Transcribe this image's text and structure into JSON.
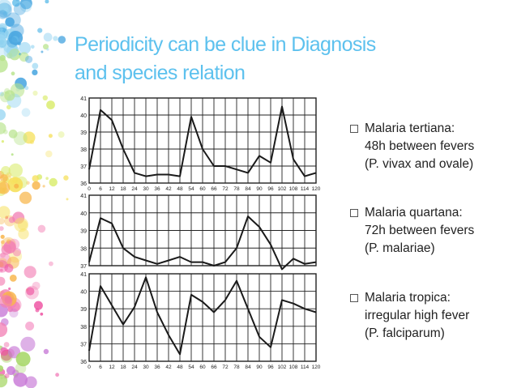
{
  "title": {
    "line1": "Periodicity can be clue in Diagnosis",
    "line2": "and species relation"
  },
  "legend": [
    {
      "line1": "Malaria tertiana:",
      "line2": "48h between fevers",
      "line3": "(P. vivax and ovale)"
    },
    {
      "line1": "Malaria quartana:",
      "line2": "72h between fevers",
      "line3": "(P. malariae)"
    },
    {
      "line1": "Malaria tropica:",
      "line2": "irregular high fever",
      "line3": "(P. falciparum)"
    }
  ],
  "colors": {
    "title": "#5dc1ee",
    "line": "#1a1a1a",
    "grid": "#222222"
  },
  "chart_data": [
    {
      "type": "line",
      "xlabel": "",
      "ylabel": "",
      "x_ticks": [
        "0",
        "6",
        "12",
        "18",
        "24",
        "30",
        "36",
        "42",
        "48",
        "54",
        "60",
        "66",
        "72",
        "78",
        "84",
        "90",
        "96",
        "102",
        "108",
        "114",
        "120"
      ],
      "y_ticks": [
        "41",
        "40",
        "39",
        "38",
        "37",
        "36"
      ],
      "ylim": [
        36,
        41
      ],
      "xlim": [
        0,
        120
      ],
      "grid": true,
      "x": [
        0,
        6,
        12,
        18,
        24,
        30,
        36,
        42,
        48,
        54,
        60,
        66,
        72,
        78,
        84,
        90,
        96,
        102,
        108,
        114,
        120
      ],
      "values": [
        36.8,
        40.3,
        39.7,
        38.0,
        36.6,
        36.4,
        36.5,
        36.5,
        36.4,
        39.9,
        38.0,
        37.0,
        37.0,
        36.8,
        36.6,
        37.6,
        37.2,
        40.5,
        37.4,
        36.4,
        36.6
      ]
    },
    {
      "type": "line",
      "xlabel": "",
      "ylabel": "",
      "x_ticks": [
        "0",
        "6",
        "12",
        "18",
        "24",
        "30",
        "36",
        "42",
        "48",
        "54",
        "60",
        "66",
        "72",
        "78",
        "84",
        "90",
        "96",
        "102",
        "108",
        "114",
        "120"
      ],
      "y_ticks": [
        "41",
        "40",
        "39",
        "38",
        "37"
      ],
      "ylim": [
        37,
        41
      ],
      "xlim": [
        0,
        120
      ],
      "grid": true,
      "x": [
        0,
        6,
        12,
        18,
        24,
        30,
        36,
        42,
        48,
        54,
        60,
        66,
        72,
        78,
        84,
        90,
        96,
        102,
        108,
        114,
        120
      ],
      "values": [
        37.2,
        39.7,
        39.4,
        38.0,
        37.5,
        37.3,
        37.1,
        37.3,
        37.5,
        37.2,
        37.2,
        37.0,
        37.2,
        38.0,
        39.8,
        39.2,
        38.2,
        36.8,
        37.4,
        37.1,
        37.2
      ]
    },
    {
      "type": "line",
      "xlabel": "",
      "ylabel": "",
      "x_ticks": [
        "0",
        "6",
        "12",
        "18",
        "24",
        "30",
        "36",
        "42",
        "48",
        "54",
        "60",
        "66",
        "72",
        "78",
        "84",
        "90",
        "96",
        "102",
        "108",
        "114",
        "120"
      ],
      "y_ticks": [
        "41",
        "40",
        "39",
        "38",
        "37",
        "36"
      ],
      "ylim": [
        36,
        41
      ],
      "xlim": [
        0,
        120
      ],
      "grid": true,
      "x": [
        0,
        6,
        12,
        18,
        24,
        30,
        36,
        42,
        48,
        54,
        60,
        66,
        72,
        78,
        84,
        90,
        96,
        102,
        108,
        114,
        120
      ],
      "values": [
        36.6,
        40.3,
        39.2,
        38.1,
        39.1,
        40.8,
        38.8,
        37.5,
        36.4,
        39.8,
        39.4,
        38.8,
        39.5,
        40.6,
        39.0,
        37.4,
        36.8,
        39.5,
        39.3,
        39.0,
        38.8
      ]
    }
  ]
}
